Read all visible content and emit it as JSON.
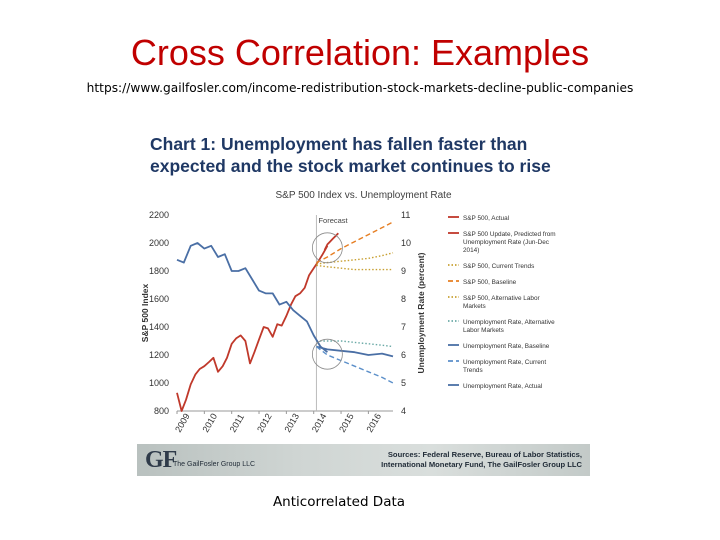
{
  "slide": {
    "title": "Cross Correlation: Examples",
    "url": "https://www.gailfosler.com/income-redistribution-stock-markets-decline-public-companies",
    "caption": "Anticorrelated Data"
  },
  "figure": {
    "heading": "Chart 1: Unemployment has fallen faster than expected and the stock market continues to rise",
    "footer": {
      "logo": "GF",
      "firm": "The GailFosler Group LLC",
      "sources_line1": "Sources: Federal Reserve, Bureau of Labor Statistics,",
      "sources_line2": "International Monetary Fund, The GailFosler Group LLC"
    }
  },
  "chart_data": {
    "type": "line",
    "title": "S&P 500 Index vs. Unemployment Rate",
    "ylabel": "S&P 500 Index",
    "y2label": "Unemployment Rate (percent)",
    "ylim": [
      800,
      2200
    ],
    "y_ticks": [
      "800",
      "1000",
      "1200",
      "1400",
      "1600",
      "1800",
      "2000",
      "2200"
    ],
    "y2lim": [
      4,
      11
    ],
    "y2_ticks": [
      "4",
      "5",
      "6",
      "7",
      "8",
      "9",
      "10",
      "11"
    ],
    "x_ticks": [
      "2009",
      "2010",
      "2011",
      "2012",
      "2013",
      "2014",
      "2015",
      "2016"
    ],
    "xlim": [
      2009.0,
      2016.9
    ],
    "forecast_label": "Forecast",
    "forecast_start": 2014.1,
    "grid": false,
    "legend_position": "right",
    "colors": {
      "sp_actual": "#c0392b",
      "sp_forecast": "#e67e22",
      "ur": "#4a6fa5",
      "ur_forecast": "#5b8fc9",
      "ur_alt": "#6aa9a6",
      "sp_alt": "#c8a032",
      "highlight": "#8a8a8a"
    },
    "series": [
      {
        "name": "S&P 500, Actual",
        "axis": "left",
        "style": "solid",
        "color_key": "sp_actual",
        "x": [
          2009.0,
          2009.17,
          2009.33,
          2009.5,
          2009.67,
          2009.83,
          2010.0,
          2010.17,
          2010.33,
          2010.5,
          2010.67,
          2010.83,
          2011.0,
          2011.17,
          2011.33,
          2011.5,
          2011.67,
          2011.83,
          2012.0,
          2012.17,
          2012.33,
          2012.5,
          2012.67,
          2012.83,
          2013.0,
          2013.17,
          2013.33,
          2013.5,
          2013.67,
          2013.83,
          2014.0,
          2014.17,
          2014.33,
          2014.5
        ],
        "y": [
          930,
          800,
          880,
          990,
          1060,
          1100,
          1120,
          1150,
          1180,
          1080,
          1120,
          1180,
          1280,
          1320,
          1340,
          1300,
          1140,
          1220,
          1310,
          1400,
          1390,
          1330,
          1420,
          1410,
          1480,
          1560,
          1620,
          1640,
          1680,
          1770,
          1820,
          1870,
          1920,
          1980
        ]
      },
      {
        "name": "S&P 500 Update, Predicted from Unemployment Rate (Jun-Dec 2014)",
        "axis": "left",
        "style": "solid",
        "color_key": "sp_actual",
        "x": [
          2014.4,
          2014.5,
          2014.6,
          2014.7,
          2014.8,
          2014.9
        ],
        "y": [
          1950,
          1990,
          2010,
          2030,
          2050,
          2070
        ]
      },
      {
        "name": "S&P 500, Current Trends",
        "axis": "left",
        "style": "dotted",
        "color_key": "sp_alt",
        "x": [
          2014.1,
          2014.5,
          2015.0,
          2015.5,
          2016.0,
          2016.5,
          2016.9
        ],
        "y": [
          1850,
          1860,
          1870,
          1880,
          1890,
          1910,
          1930
        ]
      },
      {
        "name": "S&P 500, Baseline",
        "axis": "left",
        "style": "dashed",
        "color_key": "sp_forecast",
        "x": [
          2014.1,
          2014.5,
          2015.0,
          2015.5,
          2016.0,
          2016.5,
          2016.9
        ],
        "y": [
          1860,
          1900,
          1960,
          2010,
          2060,
          2110,
          2150
        ]
      },
      {
        "name": "S&P 500, Alternative Labor Markets",
        "axis": "left",
        "style": "dotted",
        "color_key": "sp_alt",
        "x": [
          2014.1,
          2014.5,
          2015.0,
          2015.5,
          2016.0,
          2016.5,
          2016.9
        ],
        "y": [
          1840,
          1830,
          1820,
          1810,
          1810,
          1810,
          1810
        ]
      },
      {
        "name": "Unemployment Rate, Alternative Labor Markets",
        "axis": "right",
        "style": "dotted",
        "color_key": "ur_alt",
        "x": [
          2014.1,
          2014.5,
          2015.0,
          2015.5,
          2016.0,
          2016.5,
          2016.9
        ],
        "y": [
          6.5,
          6.5,
          6.5,
          6.45,
          6.4,
          6.35,
          6.3
        ]
      },
      {
        "name": "Unemployment Rate, Baseline",
        "axis": "right",
        "style": "solid",
        "color_key": "ur",
        "x": [
          2014.1,
          2014.5,
          2015.0,
          2015.5,
          2016.0,
          2016.5,
          2016.9
        ],
        "y": [
          6.3,
          6.2,
          6.15,
          6.1,
          6.0,
          6.05,
          5.95
        ]
      },
      {
        "name": "Unemployment Rate, Current Trends",
        "axis": "right",
        "style": "dashed",
        "color_key": "ur_forecast",
        "x": [
          2014.1,
          2014.5,
          2015.0,
          2015.5,
          2016.0,
          2016.5,
          2016.9
        ],
        "y": [
          6.3,
          6.0,
          5.8,
          5.6,
          5.4,
          5.2,
          5.0
        ]
      },
      {
        "name": "Unemployment Rate, Actual",
        "axis": "right",
        "style": "solid",
        "color_key": "ur",
        "x": [
          2009.0,
          2009.25,
          2009.5,
          2009.75,
          2010.0,
          2010.25,
          2010.5,
          2010.75,
          2011.0,
          2011.25,
          2011.5,
          2011.75,
          2012.0,
          2012.25,
          2012.5,
          2012.75,
          2013.0,
          2013.25,
          2013.5,
          2013.75,
          2014.0,
          2014.25,
          2014.5
        ],
        "y": [
          9.4,
          9.3,
          9.9,
          10.0,
          9.8,
          9.9,
          9.5,
          9.6,
          9.0,
          9.0,
          9.1,
          8.7,
          8.3,
          8.2,
          8.2,
          7.8,
          7.9,
          7.6,
          7.4,
          7.2,
          6.7,
          6.3,
          6.1
        ]
      }
    ]
  }
}
